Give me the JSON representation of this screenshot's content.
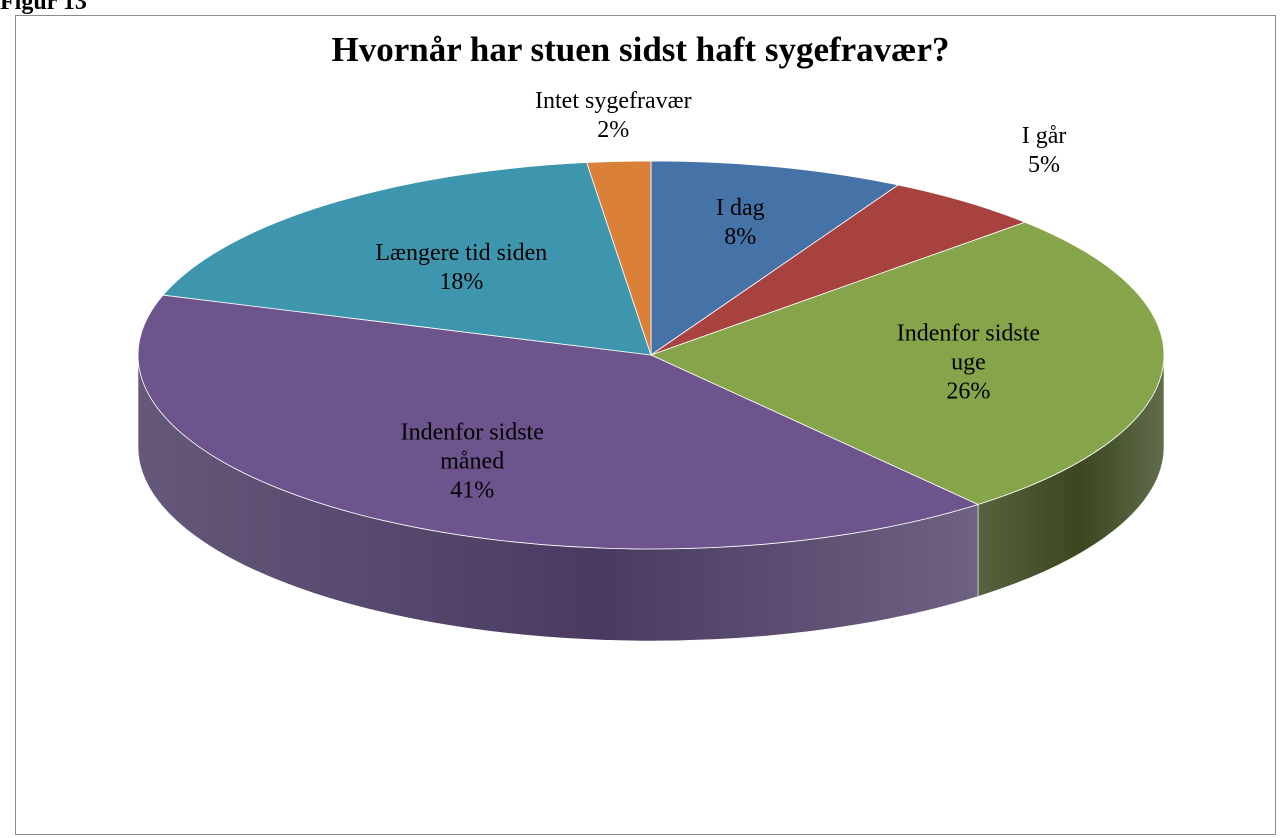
{
  "figure_label": "Figur 13",
  "chart_data": {
    "type": "pie",
    "title": "Hvornår har stuen sidst haft sygefravær?",
    "three_d": true,
    "slices": [
      {
        "name": "I dag",
        "label_lines": [
          "I dag"
        ],
        "percent_label": "8%",
        "value": 8,
        "color": "#4572a7",
        "side_color": "#2a4366"
      },
      {
        "name": "I går",
        "label_lines": [
          "I går"
        ],
        "percent_label": "5%",
        "value": 5,
        "color": "#a8423f",
        "side_color": "#632624"
      },
      {
        "name": "Indenfor sidste uge",
        "label_lines": [
          "Indenfor sidste",
          "uge"
        ],
        "percent_label": "26%",
        "value": 26,
        "color": "#86a44a",
        "side_color": "#3a471f"
      },
      {
        "name": "Indenfor sidste måned",
        "label_lines": [
          "Indenfor sidste",
          "måned"
        ],
        "percent_label": "41%",
        "value": 41,
        "color": "#6e548d",
        "side_color": "#4a3a62"
      },
      {
        "name": "Længere tid siden",
        "label_lines": [
          "Længere tid siden"
        ],
        "percent_label": "18%",
        "value": 18,
        "color": "#3d96ae",
        "side_color": "#245866"
      },
      {
        "name": "Intet sygefravær",
        "label_lines": [
          "Intet sygefravær"
        ],
        "percent_label": "2%",
        "value": 2,
        "color": "#da8137",
        "side_color": "#7f4b20"
      }
    ]
  }
}
